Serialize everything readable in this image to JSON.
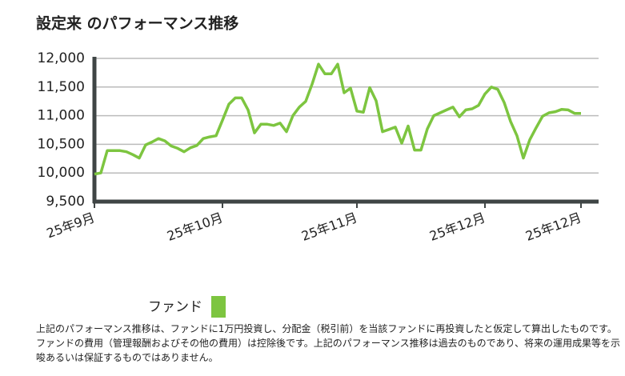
{
  "chart_data": {
    "type": "line",
    "title": "設定来 のパフォーマンス推移",
    "categories": [
      "25年9月",
      null,
      null,
      null,
      null,
      null,
      null,
      null,
      null,
      null,
      null,
      null,
      null,
      null,
      null,
      null,
      null,
      null,
      null,
      null,
      "25年10月",
      null,
      null,
      null,
      null,
      null,
      null,
      null,
      null,
      null,
      null,
      null,
      null,
      null,
      null,
      null,
      null,
      null,
      null,
      null,
      null,
      "25年11月",
      null,
      null,
      null,
      null,
      null,
      null,
      null,
      null,
      null,
      null,
      null,
      null,
      null,
      null,
      null,
      null,
      null,
      null,
      null,
      "25年12月",
      null,
      null,
      null,
      null,
      null,
      null,
      null,
      null,
      null,
      null,
      null,
      null,
      null,
      null,
      "25年12月"
    ],
    "series": [
      {
        "name": "ファンド",
        "color": "#7dc540",
        "values": [
          9980,
          10000,
          10390,
          10390,
          10390,
          10370,
          10320,
          10260,
          10490,
          10540,
          10600,
          10560,
          10470,
          10430,
          10370,
          10440,
          10480,
          10600,
          10630,
          10650,
          10920,
          11200,
          11310,
          11310,
          11100,
          10700,
          10850,
          10850,
          10830,
          10870,
          10720,
          11000,
          11150,
          11250,
          11550,
          11900,
          11730,
          11730,
          11900,
          11400,
          11480,
          11080,
          11060,
          11490,
          11260,
          10720,
          10760,
          10800,
          10520,
          10820,
          10400,
          10400,
          10770,
          11000,
          11050,
          11100,
          11150,
          10980,
          11100,
          11120,
          11180,
          11380,
          11500,
          11460,
          11230,
          10900,
          10650,
          10260,
          10580,
          10790,
          10990,
          11050,
          11070,
          11110,
          11100,
          11040,
          11040
        ]
      }
    ],
    "ylim": [
      9500,
      12000
    ],
    "yticks": [
      {
        "value": 9500,
        "label": "9,500"
      },
      {
        "value": 10000,
        "label": "10,000"
      },
      {
        "value": 10500,
        "label": "10,500"
      },
      {
        "value": 11000,
        "label": "11,000"
      },
      {
        "value": 11500,
        "label": "11,500"
      },
      {
        "value": 12000,
        "label": "12,000"
      }
    ],
    "grid": true,
    "footnote": "上記のパフォーマンス推移は、ファンドに1万円投資し、分配金（税引前）を当該ファンドに再投資したと仮定して算出したものです。ファンドの費用（管理報酬およびその他の費用）は控除後です。上記のパフォーマンス推移は過去のものであり、将来の運用成果等を示唆あるいは保証するものではありません。"
  }
}
